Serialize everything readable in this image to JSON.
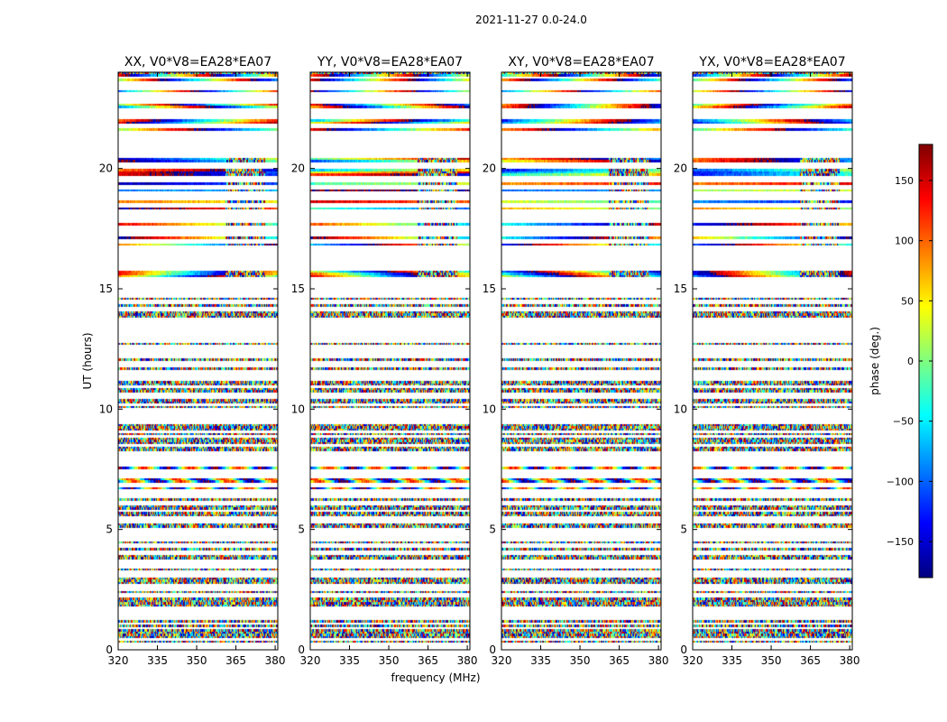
{
  "figure_title": "2021-11-27 0.0-24.0",
  "shared_xlabel": "frequency (MHz)",
  "shared_ylabel": "UT (hours)",
  "colorbar": {
    "label": "phase (deg.)",
    "range": [
      -180,
      180
    ],
    "ticks": [
      -150,
      -100,
      -50,
      0,
      50,
      100,
      150
    ],
    "tick_labels": [
      "−150",
      "−100",
      "−50",
      "0",
      "50",
      "100",
      "150"
    ],
    "colormap": "jet"
  },
  "colors": {
    "jet_stops": [
      "#00007f",
      "#0000ff",
      "#007fff",
      "#00ffff",
      "#7fff7f",
      "#ffff00",
      "#ff7f00",
      "#ff0000",
      "#7f0000"
    ],
    "gap": "#ffffff",
    "frame": "#000000"
  },
  "chart_data": [
    {
      "type": "heatmap",
      "title": "XX, V0*V8=EA28*EA07",
      "xlabel": "",
      "ylabel": "UT (hours)",
      "xlim": [
        320,
        381
      ],
      "ylim": [
        0,
        24
      ],
      "xticks": [
        320,
        335,
        350,
        365,
        380
      ],
      "yticks": [
        0,
        5,
        10,
        15,
        20
      ],
      "value": "phase (deg.)"
    },
    {
      "type": "heatmap",
      "title": "YY, V0*V8=EA28*EA07",
      "xlabel": "frequency (MHz)",
      "ylabel": "",
      "xlim": [
        320,
        381
      ],
      "ylim": [
        0,
        24
      ],
      "xticks": [
        320,
        335,
        350,
        365,
        380
      ],
      "yticks": [
        0,
        5,
        10,
        15,
        20
      ],
      "value": "phase (deg.)"
    },
    {
      "type": "heatmap",
      "title": "XY, V0*V8=EA28*EA07",
      "xlabel": "",
      "ylabel": "",
      "xlim": [
        320,
        381
      ],
      "ylim": [
        0,
        24
      ],
      "xticks": [
        320,
        335,
        350,
        365,
        380
      ],
      "yticks": [
        0,
        5,
        10,
        15,
        20
      ],
      "value": "phase (deg.)"
    },
    {
      "type": "heatmap",
      "title": "YX, V0*V8=EA28*EA07",
      "xlabel": "",
      "ylabel": "",
      "xlim": [
        320,
        381
      ],
      "ylim": [
        0,
        24
      ],
      "xticks": [
        320,
        335,
        350,
        365,
        380
      ],
      "yticks": [
        0,
        5,
        10,
        15,
        20
      ],
      "value": "phase (deg.)"
    }
  ]
}
